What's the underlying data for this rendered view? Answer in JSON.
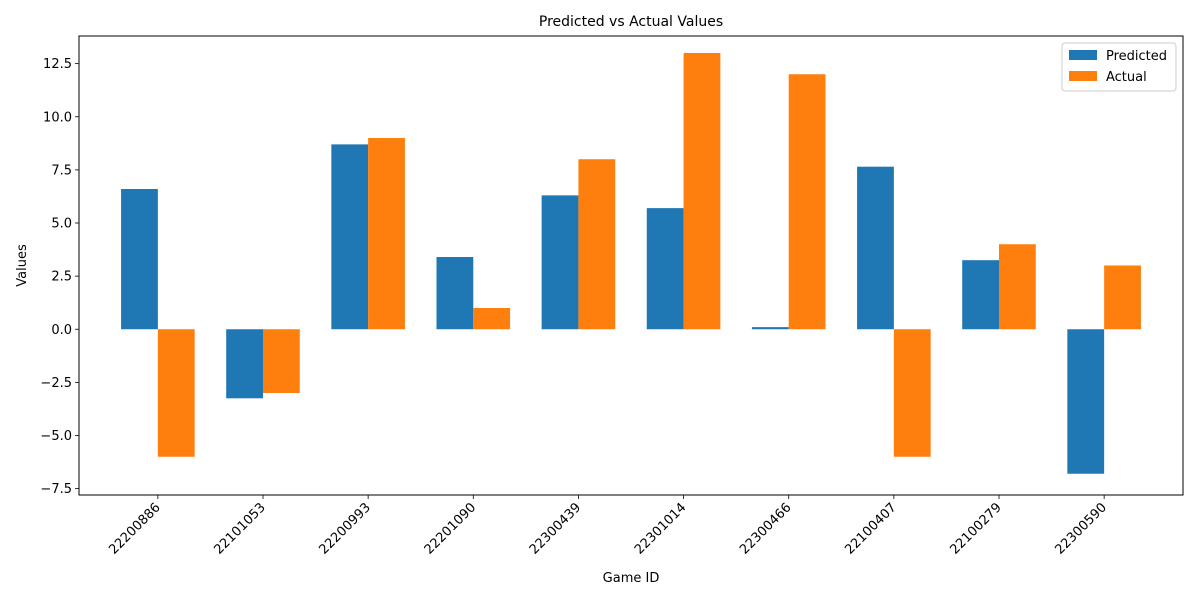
{
  "chart_data": {
    "type": "bar",
    "title": "Predicted vs Actual Values",
    "xlabel": "Game ID",
    "ylabel": "Values",
    "categories": [
      "22200886",
      "22101053",
      "22200993",
      "22201090",
      "22300439",
      "22301014",
      "22300466",
      "22100407",
      "22100279",
      "22300590"
    ],
    "series": [
      {
        "name": "Predicted",
        "color": "#1f77b4",
        "values": [
          6.6,
          -3.25,
          8.7,
          3.4,
          6.3,
          5.7,
          0.1,
          7.65,
          3.25,
          -6.8
        ]
      },
      {
        "name": "Actual",
        "color": "#ff7f0e",
        "values": [
          -6,
          -3,
          9,
          1,
          8,
          13,
          12,
          -6,
          4,
          3
        ]
      }
    ],
    "ylim": [
      -7.8,
      13.8
    ],
    "yticks": [
      -7.5,
      -5.0,
      -2.5,
      0.0,
      2.5,
      5.0,
      7.5,
      10.0,
      12.5
    ],
    "ytick_labels": [
      "−7.5",
      "−5.0",
      "−2.5",
      "0.0",
      "2.5",
      "5.0",
      "7.5",
      "10.0",
      "12.5"
    ],
    "grid": false,
    "legend_position": "top-right"
  }
}
